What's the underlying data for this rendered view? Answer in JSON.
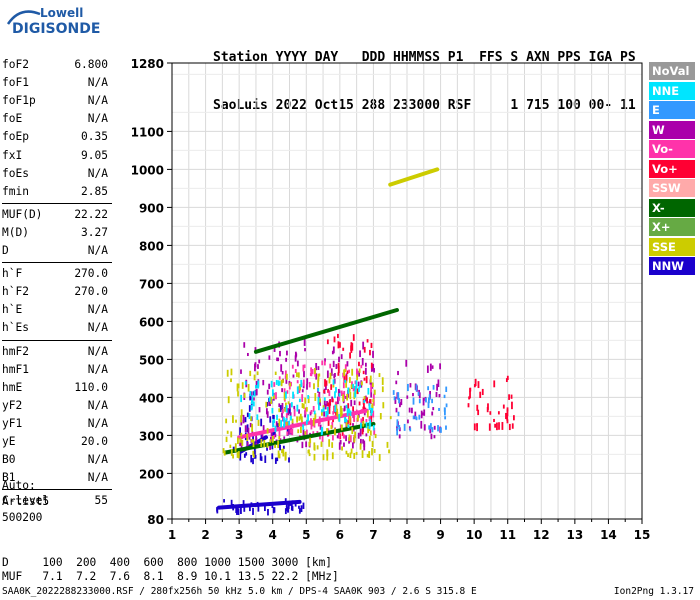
{
  "logo": {
    "line1": "Lowell",
    "line2": "DIGISONDE"
  },
  "header": {
    "row1": "Station YYYY DAY   DDD HHMMSS P1  FFS S AXN PPS IGA PS",
    "row2": "SaoLuis 2022 Oct15 288 233000 RSF     1 715 100 00- 11"
  },
  "params": [
    [
      {
        "label": "foF2",
        "value": "6.800"
      },
      {
        "label": "foF1",
        "value": "N/A"
      },
      {
        "label": "foF1p",
        "value": "N/A"
      },
      {
        "label": "foE",
        "value": "N/A"
      },
      {
        "label": "foEp",
        "value": "0.35"
      },
      {
        "label": "fxI",
        "value": "9.05"
      },
      {
        "label": "foEs",
        "value": "N/A"
      },
      {
        "label": "fmin",
        "value": "2.85"
      }
    ],
    [
      {
        "label": "MUF(D)",
        "value": "22.22"
      },
      {
        "label": "M(D)",
        "value": "3.27"
      },
      {
        "label": "D",
        "value": "N/A"
      }
    ],
    [
      {
        "label": "h`F",
        "value": "270.0"
      },
      {
        "label": "h`F2",
        "value": "270.0"
      },
      {
        "label": "h`E",
        "value": "N/A"
      },
      {
        "label": "h`Es",
        "value": "N/A"
      }
    ],
    [
      {
        "label": "hmF2",
        "value": "N/A"
      },
      {
        "label": "hmF1",
        "value": "N/A"
      },
      {
        "label": "hmE",
        "value": "110.0"
      },
      {
        "label": "yF2",
        "value": "N/A"
      },
      {
        "label": "yF1",
        "value": "N/A"
      },
      {
        "label": "yE",
        "value": "20.0"
      },
      {
        "label": "B0",
        "value": "N/A"
      },
      {
        "label": "B1",
        "value": "N/A"
      }
    ],
    [
      {
        "label": "C-level",
        "value": "55"
      }
    ]
  ],
  "auto": {
    "line1": "Auto:",
    "line2": "Artist5",
    "line3": "500200"
  },
  "footer": {
    "d_row": "D     100  200  400  600  800 1000 1500 3000 [km]",
    "muf_row": "MUF   7.1  7.2  7.6  8.1  8.9 10.1 13.5 22.2 [MHz]",
    "file_info": "SAA0K_2022288233000.RSF / 280fx256h 50 kHz 5.0 km / DPS-4 SAA0K 903 / 2.6 S 315.8 E",
    "version": "Ion2Png 1.3.17"
  },
  "legend": [
    {
      "label": "NoVal",
      "color": "#999999"
    },
    {
      "label": "NNE",
      "color": "#00e5ff"
    },
    {
      "label": "E",
      "color": "#3399ff"
    },
    {
      "label": "W",
      "color": "#aa00aa"
    },
    {
      "label": "Vo-",
      "color": "#ff33aa"
    },
    {
      "label": "Vo+",
      "color": "#ff0033"
    },
    {
      "label": "SSW",
      "color": "#ffaaaa"
    },
    {
      "label": "X-",
      "color": "#006600"
    },
    {
      "label": "X+",
      "color": "#66aa44"
    },
    {
      "label": "SSE",
      "color": "#cccc00"
    },
    {
      "label": "NNW",
      "color": "#1a00cc"
    }
  ],
  "chart_data": {
    "type": "scatter",
    "title": "",
    "xlabel": "",
    "ylabel": "",
    "xlim": [
      1,
      15
    ],
    "ylim": [
      80,
      1280
    ],
    "x_ticks": [
      "1",
      "2",
      "3",
      "4",
      "5",
      "6",
      "7",
      "8",
      "9",
      "10",
      "11",
      "12",
      "13",
      "14",
      "15"
    ],
    "y_ticks": [
      {
        "value": 80,
        "label": "80"
      },
      {
        "value": 200,
        "label": "200"
      },
      {
        "value": 300,
        "label": "300"
      },
      {
        "value": 400,
        "label": "400"
      },
      {
        "value": 500,
        "label": "500"
      },
      {
        "value": 600,
        "label": "600"
      },
      {
        "value": 700,
        "label": "700"
      },
      {
        "value": 800,
        "label": "800"
      },
      {
        "value": 900,
        "label": "900"
      },
      {
        "value": 1000,
        "label": "1000"
      },
      {
        "value": 1100,
        "label": "1100"
      },
      {
        "value": 1280,
        "label": "1280"
      }
    ],
    "grid": true,
    "series": [
      {
        "color": "#1a00cc",
        "segments": [
          [
            [
              2.4,
              110
            ],
            [
              4.8,
              125
            ]
          ],
          [
            [
              3.0,
              255
            ],
            [
              3.8,
              295
            ]
          ]
        ],
        "clusters": [
          {
            "x": [
              2.3,
              4.9
            ],
            "y": [
              105,
              135
            ]
          },
          {
            "x": [
              2.8,
              4.5
            ],
            "y": [
              240,
              420
            ]
          }
        ]
      },
      {
        "color": "#aa00aa",
        "clusters": [
          {
            "x": [
              3.0,
              7.0
            ],
            "y": [
              280,
              560
            ]
          },
          {
            "x": [
              7.6,
              9.0
            ],
            "y": [
              300,
              500
            ]
          }
        ]
      },
      {
        "color": "#ff0033",
        "clusters": [
          {
            "x": [
              5.5,
              7.0
            ],
            "y": [
              300,
              580
            ]
          },
          {
            "x": [
              9.8,
              11.2
            ],
            "y": [
              330,
              460
            ]
          }
        ]
      },
      {
        "color": "#ff33aa",
        "segments": [
          [
            [
              3.0,
              295
            ],
            [
              6.8,
              365
            ]
          ]
        ],
        "clusters": [
          {
            "x": [
              4.0,
              7.0
            ],
            "y": [
              300,
              500
            ]
          }
        ]
      },
      {
        "color": "#006600",
        "segments": [
          [
            [
              2.6,
              255
            ],
            [
              7.0,
              330
            ]
          ],
          [
            [
              3.5,
              520
            ],
            [
              7.7,
              630
            ]
          ]
        ]
      },
      {
        "color": "#3399ff",
        "clusters": [
          {
            "x": [
              7.5,
              9.2
            ],
            "y": [
              320,
              440
            ]
          }
        ]
      },
      {
        "color": "#cccc00",
        "segments": [
          [
            [
              7.5,
              960
            ],
            [
              8.9,
              1000
            ]
          ]
        ],
        "clusters": [
          {
            "x": [
              2.5,
              7.5
            ],
            "y": [
              250,
              480
            ]
          }
        ]
      },
      {
        "color": "#00e5ff",
        "clusters": [
          {
            "x": [
              3.0,
              7.0
            ],
            "y": [
              320,
              450
            ]
          }
        ]
      }
    ]
  }
}
